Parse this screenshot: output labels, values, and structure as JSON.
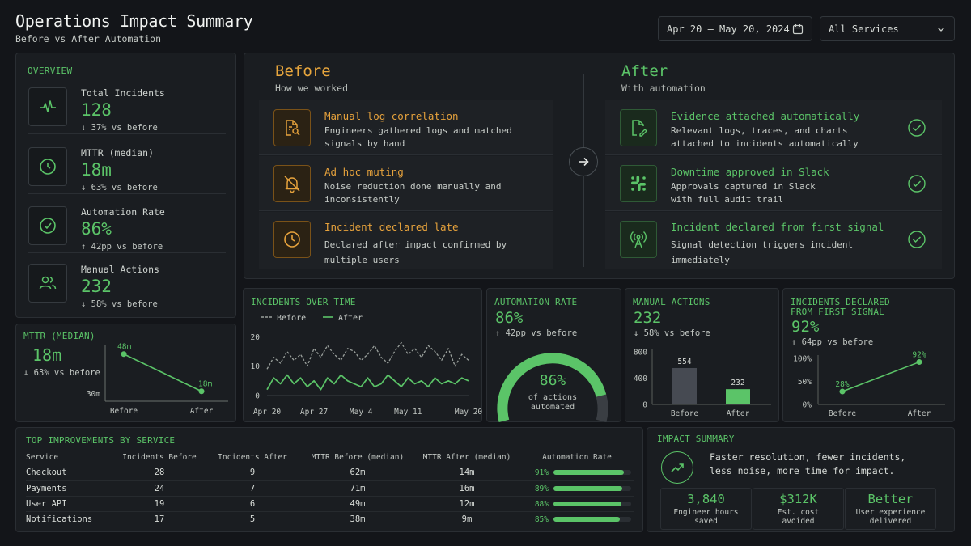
{
  "header": {
    "title": "Operations Impact Summary",
    "subtitle": "Before vs After Automation",
    "date_range": "Apr 20 – May 20, 2024",
    "service_filter": "All Services"
  },
  "overview": {
    "title": "OVERVIEW",
    "items": [
      {
        "label": "Total Incidents",
        "value": "128",
        "delta": "↓ 37% vs before",
        "icon": "pulse-icon"
      },
      {
        "label": "MTTR (median)",
        "value": "18m",
        "delta": "↓ 63% vs before",
        "icon": "clock-icon"
      },
      {
        "label": "Automation Rate",
        "value": "86%",
        "delta": "↑ 42pp vs before",
        "icon": "check-circle-icon"
      },
      {
        "label": "Manual Actions",
        "value": "232",
        "delta": "↓ 58% vs before",
        "icon": "users-icon"
      }
    ]
  },
  "before": {
    "title": "Before",
    "subtitle": "How we worked",
    "items": [
      {
        "title": "Manual log correlation",
        "desc": "Engineers gathered logs and matched signals by hand",
        "icon": "file-search-icon"
      },
      {
        "title": "Ad hoc muting",
        "desc": "Noise reduction done manually and inconsistently",
        "icon": "bell-off-icon"
      },
      {
        "title": "Incident declared late",
        "desc": "Declared after impact confirmed by multiple users",
        "icon": "clock-icon"
      }
    ]
  },
  "after": {
    "title": "After",
    "subtitle": "With automation",
    "items": [
      {
        "title": "Evidence attached automatically",
        "desc": "Relevant logs, traces, and charts attached to incidents automatically",
        "icon": "file-edit-icon"
      },
      {
        "title": "Downtime approved in Slack",
        "desc": "Approvals captured in Slack with full audit trail",
        "icon": "slack-icon"
      },
      {
        "title": "Incident declared from first signal",
        "desc": "Signal detection triggers incident immediately",
        "icon": "signal-tower-icon"
      }
    ]
  },
  "mttr_panel": {
    "title": "MTTR (MEDIAN)",
    "value": "18m",
    "delta": "↓ 63% vs before",
    "y_tick": "30m",
    "labels": [
      "48m",
      "18m"
    ],
    "categories": [
      "Before",
      "After"
    ]
  },
  "automation_panel": {
    "title": "AUTOMATION RATE",
    "value": "86%",
    "delta": "↑ 42pp vs before",
    "gauge_value": "86%",
    "gauge_caption_1": "of actions",
    "gauge_caption_2": "automated"
  },
  "manual_panel": {
    "title": "MANUAL ACTIONS",
    "value": "232",
    "delta": "↓ 58% vs before"
  },
  "declared_panel": {
    "title_1": "INCIDENTS DECLARED",
    "title_2": "FROM FIRST SIGNAL",
    "value": "92%",
    "delta": "↑ 64pp vs before"
  },
  "incidents_panel": {
    "title": "INCIDENTS OVER TIME",
    "legend_before": "Before",
    "legend_after": "After"
  },
  "chart_data": [
    {
      "type": "line",
      "title": "INCIDENTS OVER TIME",
      "x": [
        "Apr 20",
        "Apr 21",
        "Apr 22",
        "Apr 23",
        "Apr 24",
        "Apr 25",
        "Apr 26",
        "Apr 27",
        "Apr 28",
        "Apr 29",
        "Apr 30",
        "May 1",
        "May 2",
        "May 3",
        "May 4",
        "May 5",
        "May 6",
        "May 7",
        "May 8",
        "May 9",
        "May 10",
        "May 11",
        "May 12",
        "May 13",
        "May 14",
        "May 15",
        "May 16",
        "May 17",
        "May 18",
        "May 19",
        "May 20"
      ],
      "x_ticks": [
        "Apr 20",
        "Apr 27",
        "May 4",
        "May 11",
        "May 20"
      ],
      "y_ticks": [
        0,
        10,
        20
      ],
      "ylim": [
        0,
        22
      ],
      "series": [
        {
          "name": "Before",
          "values": [
            9,
            13,
            11,
            15,
            12,
            14,
            10,
            16,
            13,
            17,
            14,
            12,
            16,
            15,
            12,
            14,
            17,
            13,
            11,
            15,
            18,
            14,
            16,
            13,
            17,
            15,
            12,
            16,
            10,
            14,
            12
          ]
        },
        {
          "name": "After",
          "values": [
            2,
            6,
            4,
            7,
            4,
            6,
            3,
            5,
            2,
            6,
            4,
            7,
            5,
            4,
            3,
            6,
            3,
            4,
            7,
            5,
            3,
            6,
            4,
            5,
            3,
            6,
            4,
            5,
            4,
            6,
            5
          ]
        }
      ]
    },
    {
      "type": "line",
      "title": "MTTR (MEDIAN)",
      "categories": [
        "Before",
        "After"
      ],
      "values": [
        48,
        18
      ],
      "ylim": [
        10,
        55
      ]
    },
    {
      "type": "bar",
      "title": "MANUAL ACTIONS",
      "categories": [
        "Before",
        "After"
      ],
      "values": [
        554,
        232
      ],
      "y_ticks": [
        0,
        400,
        800
      ],
      "ylim": [
        0,
        800
      ]
    },
    {
      "type": "line",
      "title": "INCIDENTS DECLARED FROM FIRST SIGNAL",
      "categories": [
        "Before",
        "After"
      ],
      "values": [
        28,
        92
      ],
      "y_ticks": [
        "0%",
        "50%",
        "100%"
      ],
      "ylim": [
        0,
        100
      ]
    },
    {
      "type": "pie",
      "title": "AUTOMATION RATE",
      "values": [
        86,
        14
      ],
      "categories": [
        "automated",
        "manual"
      ]
    }
  ],
  "improvements": {
    "title": "TOP IMPROVEMENTS BY SERVICE",
    "columns": [
      "Service",
      "Incidents Before",
      "Incidents After",
      "MTTR Before (median)",
      "MTTR After (median)",
      "Automation Rate"
    ],
    "rows": [
      {
        "service": "Checkout",
        "inc_before": "28",
        "inc_after": "9",
        "mttr_before": "62m",
        "mttr_after": "14m",
        "rate": "91%",
        "rate_value": 91
      },
      {
        "service": "Payments",
        "inc_before": "24",
        "inc_after": "7",
        "mttr_before": "71m",
        "mttr_after": "16m",
        "rate": "89%",
        "rate_value": 89
      },
      {
        "service": "User API",
        "inc_before": "19",
        "inc_after": "6",
        "mttr_before": "49m",
        "mttr_after": "12m",
        "rate": "88%",
        "rate_value": 88
      },
      {
        "service": "Notifications",
        "inc_before": "17",
        "inc_after": "5",
        "mttr_before": "38m",
        "mttr_after": "9m",
        "rate": "85%",
        "rate_value": 85
      }
    ]
  },
  "impact": {
    "title": "IMPACT SUMMARY",
    "text_1": "Faster resolution, fewer incidents,",
    "text_2": "less noise, more time for impact.",
    "stats": [
      {
        "value": "3,840",
        "label_1": "Engineer hours",
        "label_2": "saved"
      },
      {
        "value": "$312K",
        "label_1": "Est. cost",
        "label_2": "avoided"
      },
      {
        "value": "Better",
        "label_1": "User experience",
        "label_2": "delivered"
      }
    ]
  },
  "colors": {
    "accent_green": "#5bc468",
    "accent_orange": "#e6a23c",
    "background": "#131519",
    "panel": "#1a1d21"
  }
}
